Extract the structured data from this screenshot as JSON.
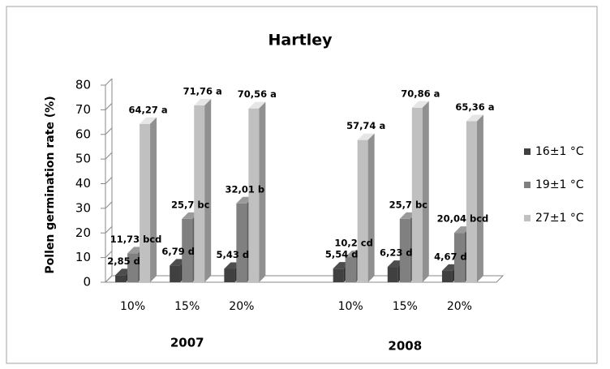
{
  "chart_data": {
    "type": "bar3d",
    "title": "Hartley",
    "y_label": "Pollen germination rate (%)",
    "categories": [
      "10%",
      "15%",
      "20%",
      null,
      "10%",
      "15%",
      "20%"
    ],
    "groups": [
      "2007",
      "2008"
    ],
    "series": [
      {
        "name": "16±1 °C",
        "color": "#404040",
        "values": [
          2.85,
          6.79,
          5.43,
          null,
          5.54,
          6.23,
          4.67
        ],
        "value_labels": [
          "2,85 d",
          "6,79 d",
          "5,43 d",
          null,
          "5,54 d",
          "6,23 d",
          "4,67 d"
        ]
      },
      {
        "name": "19±1 °C",
        "color": "#808080",
        "values": [
          11.73,
          25.7,
          32.01,
          null,
          10.2,
          25.7,
          20.04
        ],
        "value_labels": [
          "11,73 bcd",
          "25,7 bc",
          "32,01 b",
          null,
          "10,2 cd",
          "25,7 bc",
          "20,04 bcd"
        ]
      },
      {
        "name": "27±1 °C",
        "color": "#c0c0c0",
        "values": [
          64.27,
          71.76,
          70.56,
          null,
          57.74,
          70.86,
          65.36
        ],
        "value_labels": [
          "64,27 a",
          "71,76 a",
          "70,56 a",
          null,
          "57,74 a",
          "70,86 a",
          "65,36 a"
        ]
      }
    ],
    "ylim": [
      0,
      80
    ],
    "yticks": [
      0,
      10,
      20,
      30,
      40,
      50,
      60,
      70,
      80
    ],
    "legend": "right"
  }
}
